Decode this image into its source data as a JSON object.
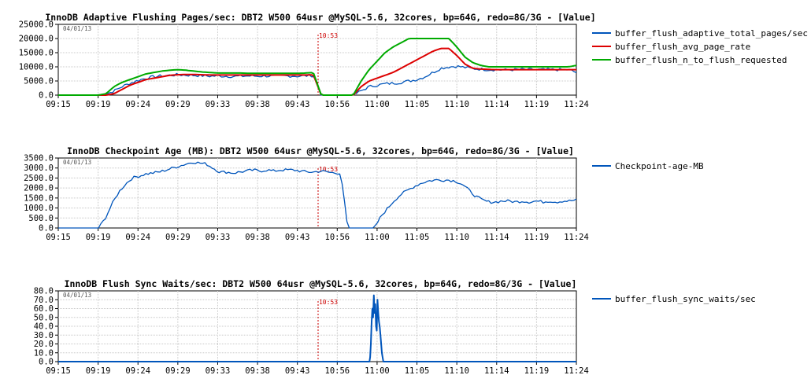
{
  "chart_data": [
    {
      "type": "line",
      "title": "InnoDB Adaptive Flushing Pages/sec: DBT2 W500 64usr @MySQL-5.6, 32cores, bp=64G, redo=8G/3G - [Value]",
      "date": "04/01/13",
      "marker": "10:53",
      "x_ticks": [
        "09:15",
        "09:19",
        "09:24",
        "09:29",
        "09:33",
        "09:38",
        "09:43",
        "10:56",
        "11:00",
        "11:05",
        "11:10",
        "11:14",
        "11:19",
        "11:24"
      ],
      "y_ticks": [
        "0.0",
        "5000.0",
        "10000.0",
        "15000.0",
        "20000.0",
        "25000.0"
      ],
      "ylim": [
        0,
        25000
      ],
      "grid": true,
      "legend_position": "right",
      "series": [
        {
          "name": "buffer_flush_adaptive_total_pages/sec",
          "color": "#0055bb",
          "noisy": true,
          "values": [
            0,
            0,
            0,
            0,
            0,
            0,
            300,
            1500,
            3000,
            4200,
            5200,
            6000,
            6500,
            6800,
            7000,
            7200,
            7100,
            7000,
            6900,
            6700,
            6800,
            6700,
            6600,
            6700,
            6800,
            6700,
            6800,
            6700,
            6800,
            6800,
            6700,
            6800,
            7000,
            0,
            0,
            0,
            0,
            0,
            1500,
            3000,
            3500,
            4000,
            4200,
            4500,
            5000,
            5500,
            6500,
            8000,
            9500,
            10000,
            10200,
            9800,
            9400,
            9200,
            9000,
            9000,
            8900,
            9000,
            9100,
            9000,
            9000,
            9000,
            9000,
            9000,
            9000,
            8000
          ]
        },
        {
          "name": "buffer_flush_avg_page_rate",
          "color": "#dd0000",
          "noisy": false,
          "values": [
            0,
            0,
            0,
            0,
            0,
            0,
            0,
            500,
            2000,
            3500,
            4500,
            5500,
            6000,
            6500,
            7000,
            7200,
            7300,
            7300,
            7200,
            7100,
            7100,
            7100,
            7100,
            7100,
            7100,
            7100,
            7100,
            7100,
            7100,
            7100,
            7100,
            7100,
            7200,
            0,
            0,
            0,
            0,
            0,
            3000,
            5000,
            6000,
            7000,
            8000,
            9500,
            11000,
            12500,
            14000,
            15500,
            16500,
            16500,
            14000,
            11000,
            9500,
            9200,
            9100,
            9000,
            9000,
            9000,
            9000,
            9000,
            9000,
            9000,
            9000,
            9000,
            9000,
            9000
          ]
        },
        {
          "name": "buffer_flush_n_to_flush_requested",
          "color": "#00aa00",
          "noisy": false,
          "values": [
            0,
            0,
            0,
            0,
            0,
            0,
            500,
            3000,
            4500,
            5500,
            6500,
            7500,
            8000,
            8500,
            8800,
            9000,
            8800,
            8500,
            8200,
            8000,
            7800,
            7800,
            7800,
            7800,
            7700,
            7700,
            7700,
            7700,
            7700,
            7700,
            7700,
            7800,
            8000,
            0,
            0,
            0,
            0,
            0,
            5000,
            9000,
            12000,
            15000,
            17000,
            18500,
            20000,
            20000,
            20000,
            20000,
            20000,
            20000,
            17000,
            13500,
            11500,
            10500,
            10000,
            10000,
            10000,
            10000,
            10000,
            10000,
            10000,
            10000,
            10000,
            10000,
            10000,
            10500
          ]
        }
      ]
    },
    {
      "type": "line",
      "title": "InnoDB Checkpoint Age (MB): DBT2 W500 64usr @MySQL-5.6, 32cores, bp=64G, redo=8G/3G - [Value]",
      "date": "04/01/13",
      "marker": "10:53",
      "x_ticks": [
        "09:15",
        "09:19",
        "09:24",
        "09:29",
        "09:33",
        "09:38",
        "09:43",
        "10:56",
        "11:00",
        "11:05",
        "11:10",
        "11:14",
        "11:19",
        "11:24"
      ],
      "y_ticks": [
        "0.0",
        "500.0",
        "1000.0",
        "1500.0",
        "2000.0",
        "2500.0",
        "3000.0",
        "3500.0"
      ],
      "ylim": [
        0,
        3500
      ],
      "grid": true,
      "legend_position": "right",
      "series": [
        {
          "name": "Checkpoint-age-MB",
          "color": "#0055bb",
          "noisy": true,
          "values": [
            0,
            0,
            0,
            0,
            0,
            0,
            0,
            500,
            1200,
            1800,
            2200,
            2500,
            2600,
            2700,
            2750,
            2800,
            2900,
            3000,
            3100,
            3200,
            3300,
            3250,
            3200,
            3000,
            2800,
            2800,
            2750,
            2800,
            2850,
            2900,
            2850,
            2900,
            2850,
            2900,
            2900,
            2900,
            2850,
            2800,
            2800,
            2850,
            2800,
            2750,
            2750,
            0,
            0,
            0,
            0,
            0,
            600,
            1000,
            1400,
            1700,
            1900,
            2100,
            2250,
            2350,
            2400,
            2400,
            2400,
            2350,
            2200,
            1900,
            1600,
            1400,
            1300,
            1300,
            1350,
            1350,
            1300,
            1350,
            1300,
            1350,
            1300,
            1350,
            1300,
            1350,
            1350,
            1400
          ]
        }
      ]
    },
    {
      "type": "line",
      "title": "InnoDB Flush Sync Waits/sec: DBT2 W500 64usr @MySQL-5.6, 32cores, bp=64G, redo=8G/3G - [Value]",
      "date": "04/01/13",
      "marker": "10:53",
      "x_ticks": [
        "09:15",
        "09:19",
        "09:24",
        "09:29",
        "09:33",
        "09:38",
        "09:43",
        "10:56",
        "11:00",
        "11:05",
        "11:10",
        "11:14",
        "11:19",
        "11:24"
      ],
      "y_ticks": [
        "0.0",
        "10.0",
        "20.0",
        "30.0",
        "40.0",
        "50.0",
        "60.0",
        "70.0",
        "80.0"
      ],
      "ylim": [
        0,
        80
      ],
      "grid": true,
      "legend_position": "right",
      "series": [
        {
          "name": "buffer_flush_sync_waits/sec",
          "color": "#0055bb",
          "noisy": false,
          "values": [
            0,
            0,
            0,
            0,
            0,
            0,
            0,
            0,
            0,
            0,
            0,
            0,
            0,
            0,
            0,
            0,
            0,
            0,
            0,
            0,
            0,
            0,
            0,
            0,
            0,
            0,
            0,
            0,
            0,
            0,
            0,
            0,
            0,
            0,
            0,
            0,
            0,
            0,
            0,
            0,
            0,
            0,
            0,
            0,
            0,
            0,
            0,
            0,
            0,
            0,
            0,
            0,
            0,
            0,
            0,
            0,
            0,
            0,
            0,
            0,
            0,
            0,
            0,
            0,
            0,
            0,
            0,
            0,
            0,
            0,
            0,
            0,
            0,
            0,
            0,
            0,
            0,
            0,
            0,
            0,
            0,
            0,
            0,
            0,
            0,
            0,
            0,
            0,
            0,
            0,
            0,
            0,
            0,
            0,
            0,
            0,
            0,
            0,
            0,
            0,
            0,
            0,
            0,
            0,
            0,
            0,
            0,
            0,
            0,
            0,
            0,
            0,
            0,
            0,
            0,
            0,
            0,
            0,
            0,
            0,
            0,
            0,
            0,
            0,
            0,
            0,
            0,
            0,
            0,
            0,
            0,
            0,
            0,
            0,
            0,
            0,
            0,
            0,
            0,
            0,
            0,
            0,
            0,
            0,
            0,
            0,
            0,
            0,
            0,
            0,
            0,
            0,
            0,
            0,
            0,
            0,
            0,
            0,
            0,
            0,
            0,
            0,
            0,
            0,
            0,
            0,
            0,
            0,
            0,
            0,
            0,
            0,
            0,
            0,
            0,
            0,
            0,
            0,
            0,
            0,
            0,
            0,
            0,
            0,
            0,
            0,
            0,
            0,
            0,
            0,
            0,
            0,
            0,
            0,
            0,
            0,
            0,
            0,
            0,
            0,
            0,
            0,
            0,
            0,
            0,
            0,
            0,
            0,
            0,
            0,
            0,
            0,
            0,
            0,
            0,
            0,
            0,
            0,
            0,
            0,
            0,
            0,
            0,
            0,
            0,
            0,
            0,
            0,
            0,
            0,
            0,
            0,
            0,
            0,
            0,
            0,
            0,
            0,
            0,
            0,
            0,
            0,
            0,
            0,
            0,
            0,
            0,
            0,
            0,
            0,
            0,
            0,
            0,
            0,
            0,
            0,
            0,
            0,
            0,
            0,
            0,
            0,
            0,
            0,
            0,
            0,
            0,
            0,
            0,
            0,
            0,
            0,
            0,
            0,
            0,
            0,
            0,
            0,
            0,
            0,
            0,
            0,
            0,
            0,
            0,
            0,
            0,
            0,
            0,
            0,
            0,
            0,
            0,
            0,
            0,
            0,
            0,
            0,
            0,
            0,
            0,
            0,
            0,
            0,
            0,
            0,
            0,
            0,
            0,
            0,
            0,
            0,
            0,
            0,
            0,
            0,
            0,
            0,
            0,
            0,
            0,
            0,
            0,
            0,
            0,
            0,
            0,
            0,
            0,
            0,
            0,
            0,
            0,
            0,
            0,
            0,
            0,
            0,
            0,
            0,
            0,
            0,
            0,
            0,
            0,
            0,
            0,
            0,
            0,
            0,
            0,
            0,
            0,
            0,
            0,
            0,
            0,
            0,
            0,
            0,
            0,
            0,
            0,
            0,
            0,
            0,
            0,
            0,
            0,
            0,
            0,
            0,
            0,
            0,
            0,
            0,
            0,
            0,
            0,
            0,
            0,
            0,
            0,
            0,
            0,
            0,
            0,
            0,
            0,
            0,
            0,
            0,
            0,
            0,
            0,
            0,
            0,
            0,
            0,
            0,
            0,
            0,
            0,
            0,
            0,
            0,
            0,
            0,
            0,
            0,
            0,
            0,
            0,
            0,
            0,
            0,
            0,
            0,
            0,
            0,
            0,
            0,
            0,
            0,
            0,
            5,
            20,
            45,
            60,
            50,
            75,
            55,
            65,
            40,
            35,
            70,
            55,
            45,
            40,
            30,
            20,
            10,
            5,
            0,
            0,
            0,
            0,
            0,
            0,
            0,
            0,
            0,
            0,
            0,
            0,
            0,
            0,
            0,
            0,
            0,
            0,
            0,
            0,
            0,
            0,
            0,
            0,
            0,
            0,
            0,
            0,
            0,
            0,
            0,
            0,
            0,
            0,
            0,
            0,
            0,
            0,
            0,
            0,
            0,
            0,
            0,
            0,
            0,
            0,
            0,
            0,
            0,
            0,
            0,
            0,
            0,
            0,
            0,
            0,
            0,
            0,
            0,
            0,
            0,
            0,
            0,
            0,
            0,
            0,
            0,
            0,
            0,
            0,
            0,
            0,
            0,
            0,
            0,
            0,
            0,
            0,
            0,
            0,
            0,
            0,
            0,
            0,
            0,
            0,
            0,
            0,
            0,
            0,
            0,
            0,
            0,
            0,
            0,
            0,
            0,
            0,
            0,
            0,
            0,
            0,
            0,
            0,
            0,
            0,
            0,
            0,
            0,
            0,
            0,
            0,
            0,
            0,
            0,
            0,
            0,
            0,
            0,
            0,
            0,
            0,
            0,
            0,
            0,
            0,
            0,
            0,
            0,
            0,
            0,
            0,
            0,
            0,
            0,
            0,
            0,
            0,
            0,
            0,
            0,
            0,
            0,
            0,
            0,
            0,
            0,
            0,
            0,
            0,
            0,
            0,
            0,
            0,
            0,
            0,
            0,
            0,
            0,
            0,
            0,
            0,
            0,
            0,
            0,
            0,
            0,
            0,
            0,
            0,
            0,
            0,
            0,
            0,
            0,
            0,
            0,
            0,
            0,
            0,
            0,
            0,
            0,
            0,
            0,
            0,
            0,
            0,
            0,
            0,
            0,
            0,
            0,
            0,
            0,
            0,
            0,
            0,
            0,
            0,
            0,
            0,
            0,
            0,
            0,
            0,
            0,
            0,
            0,
            0,
            0,
            0,
            0,
            0,
            0,
            0,
            0,
            0,
            0,
            0,
            0,
            0,
            0,
            0,
            0,
            0,
            0,
            0,
            0,
            0,
            0,
            0,
            0,
            0,
            0,
            0,
            0,
            0,
            0,
            0,
            0,
            0,
            0,
            0,
            0,
            0,
            0,
            0,
            0,
            0,
            0,
            0,
            0,
            0,
            0,
            0,
            0,
            0,
            0,
            0,
            0,
            0,
            0,
            0
          ]
        }
      ]
    }
  ]
}
